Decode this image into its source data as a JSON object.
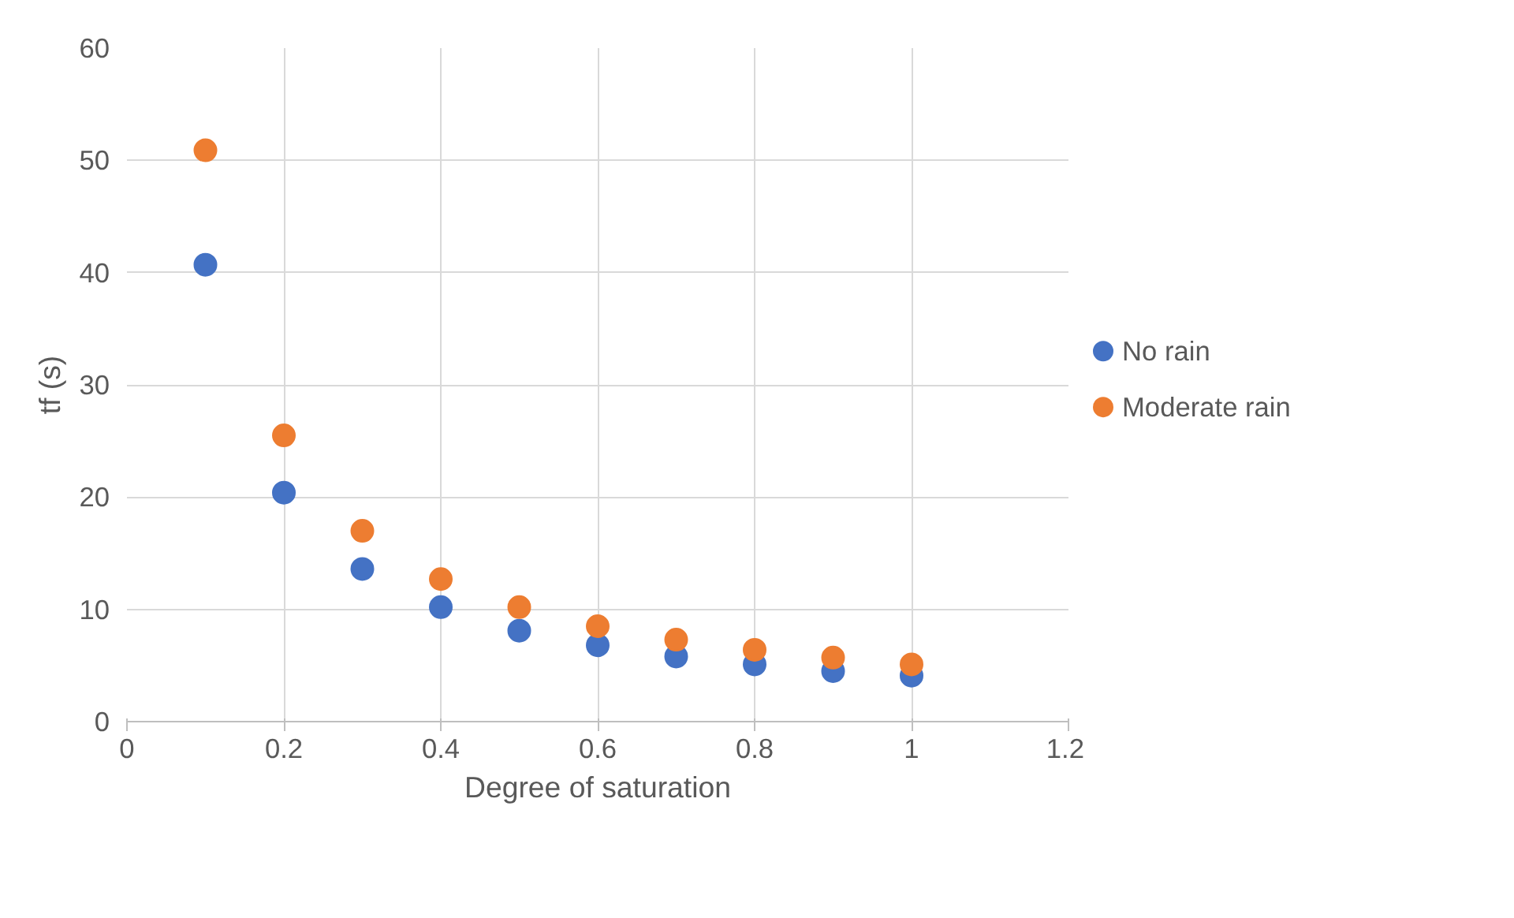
{
  "chart_data": {
    "type": "scatter",
    "xlabel": "Degree of saturation",
    "ylabel": "tf (s)",
    "x": [
      0.1,
      0.2,
      0.3,
      0.4,
      0.5,
      0.6,
      0.7,
      0.8,
      0.9,
      1.0
    ],
    "series": [
      {
        "name": "No rain",
        "color": "#4472c4",
        "values": [
          40.7,
          20.4,
          13.6,
          10.2,
          8.1,
          6.8,
          5.8,
          5.1,
          4.5,
          4.1
        ]
      },
      {
        "name": "Moderate rain",
        "color": "#ed7d31",
        "values": [
          50.9,
          25.5,
          17.0,
          12.7,
          10.2,
          8.5,
          7.3,
          6.4,
          5.7,
          5.1
        ]
      }
    ],
    "xlim": [
      0,
      1.2
    ],
    "xticks": [
      0,
      0.2,
      0.4,
      0.6,
      0.8,
      1,
      1.2
    ],
    "ylim": [
      0,
      60
    ],
    "yticks": [
      0,
      10,
      20,
      30,
      40,
      50,
      60
    ],
    "grid": true,
    "legend": "right",
    "marker": "circle"
  }
}
